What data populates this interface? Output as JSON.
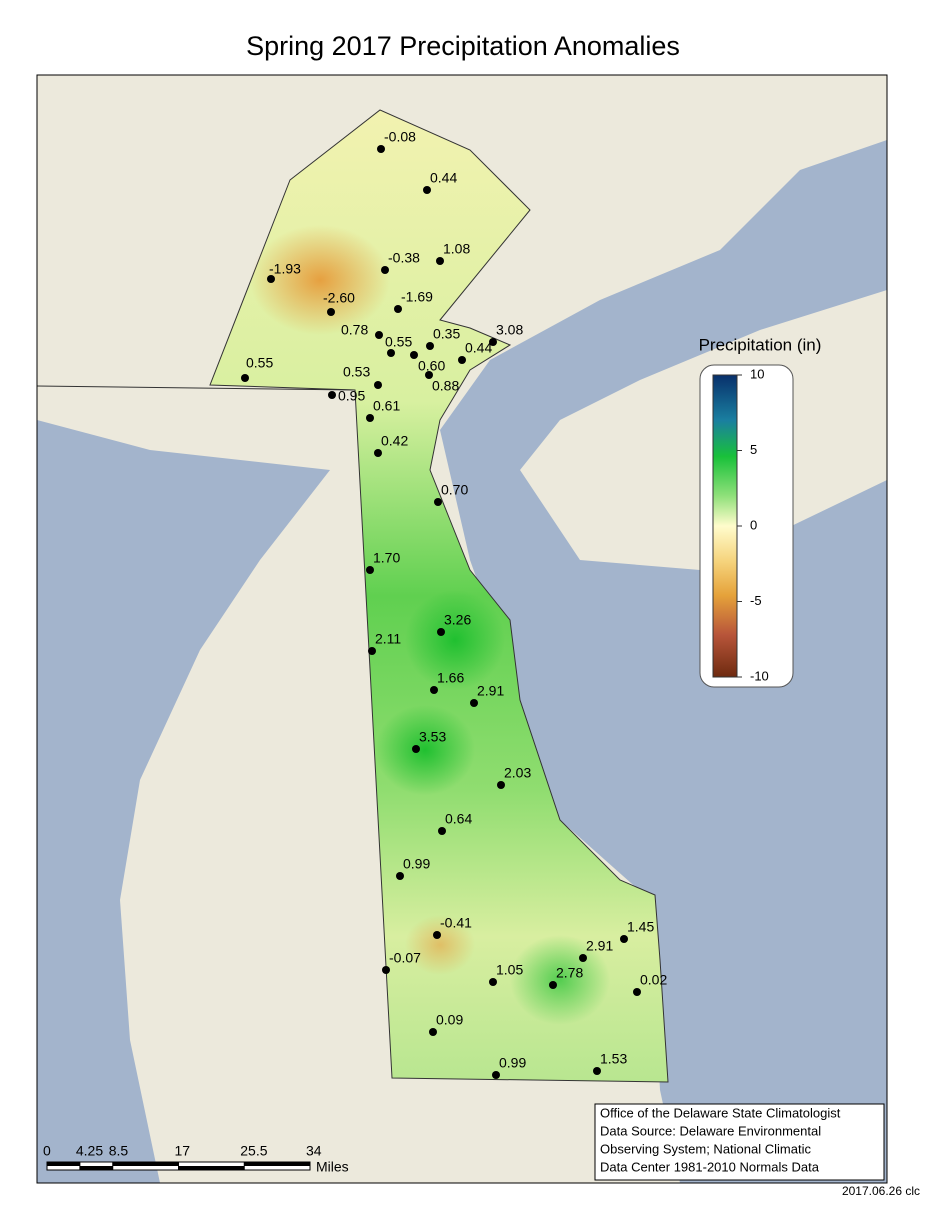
{
  "title": "Spring 2017 Precipitation Anomalies",
  "legend": {
    "title": "Precipitation (in)",
    "range": [
      -10,
      10
    ],
    "ticks": [
      10,
      5,
      0,
      -5,
      -10
    ]
  },
  "stations": [
    "-0.08",
    "0.44",
    "1.08",
    "-0.38",
    "-1.93",
    "-2.60",
    "-1.69",
    "0.78",
    "0.35",
    "3.08",
    "0.55",
    "0.55",
    "0.60",
    "0.44",
    "0.53",
    "0.88",
    "0.95",
    "0.61",
    "0.42",
    "0.70",
    "1.70",
    "3.26",
    "2.11",
    "1.66",
    "2.91",
    "3.53",
    "2.03",
    "0.64",
    "0.99",
    "1.45",
    "-0.41",
    "2.91",
    "-0.07",
    "1.05",
    "2.78",
    "0.02",
    "0.09",
    "0.99",
    "1.53"
  ],
  "scale_bar": {
    "range": [
      0,
      34
    ],
    "ticks": [
      0,
      4.25,
      8.5,
      17,
      25.5,
      34
    ],
    "unit": "Miles"
  },
  "credit": [
    "Office of the Delaware State Climatologist",
    "Data Source: Delaware Environmental",
    "Observing System; National Climatic",
    "Data Center 1981-2010 Normals Data"
  ],
  "footer": "2017.06.26 clc"
}
